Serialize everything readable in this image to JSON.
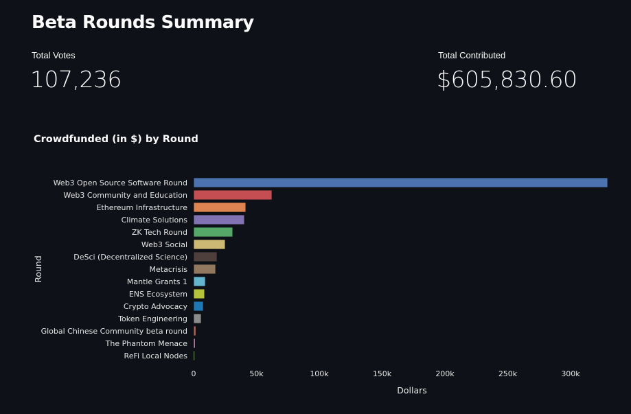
{
  "page": {
    "title": "Beta Rounds Summary",
    "metrics": [
      {
        "label": "Total Votes",
        "value": "107,236"
      },
      {
        "label": "Total Contributed",
        "value": "$605,830.60"
      }
    ]
  },
  "chart_data": {
    "type": "bar",
    "orientation": "horizontal",
    "title": "Crowdfunded (in $) by Round",
    "xlabel": "Dollars",
    "ylabel": "Round",
    "xlim": [
      0,
      332000
    ],
    "xticks": [
      0,
      50000,
      100000,
      150000,
      200000,
      250000,
      300000
    ],
    "xtick_labels": [
      "0",
      "50k",
      "100k",
      "150k",
      "200k",
      "250k",
      "300k"
    ],
    "grid": false,
    "categories": [
      "Web3 Open Source Software Round",
      "Web3 Community and Education",
      "Ethereum Infrastructure",
      "Climate Solutions",
      "ZK Tech Round",
      "Web3 Social",
      "DeSci (Decentralized Science)",
      "Metacrisis",
      "Mantle Grants 1",
      "ENS Ecosystem",
      "Crypto Advocacy",
      "Token Engineering",
      "Global Chinese Community beta round",
      "The Phantom Menace",
      "ReFi Local Nodes"
    ],
    "values": [
      329500,
      62300,
      41500,
      40400,
      31100,
      25100,
      18600,
      17500,
      9300,
      8700,
      7700,
      6000,
      1800,
      1200,
      600
    ],
    "colors": [
      "#4c72b0",
      "#c44e52",
      "#dd8452",
      "#8172b3",
      "#55a868",
      "#ccb974",
      "#4f3f3c",
      "#937860",
      "#64b5cd",
      "#b5c23a",
      "#1f77b4",
      "#8c8c8c",
      "#a86458",
      "#da8bc3",
      "#9fd67a"
    ]
  }
}
